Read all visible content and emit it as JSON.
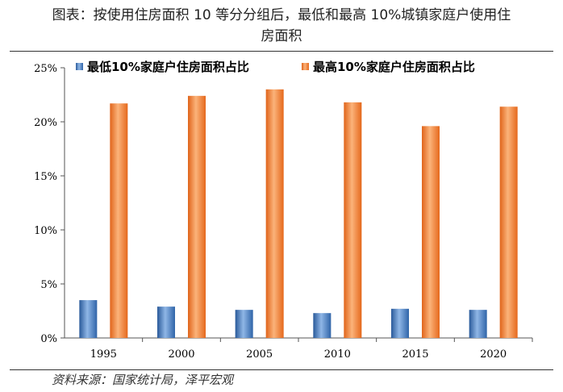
{
  "header": {
    "title_line1": "图表：按使用住房面积 10 等分分组后，最低和最高 10%城镇家庭户使用住",
    "title_line2": "房面积"
  },
  "footer": {
    "source": "资料来源：国家统计局，泽平宏观"
  },
  "colors": {
    "low_series": "#4a7fc1",
    "high_series": "#f07f2c"
  },
  "chart_data": {
    "type": "bar",
    "categories": [
      "1995",
      "2000",
      "2005",
      "2010",
      "2015",
      "2020"
    ],
    "series": [
      {
        "name": "最低10%家庭户住房面积占比",
        "values": [
          3.5,
          2.9,
          2.6,
          2.3,
          2.7,
          2.6
        ]
      },
      {
        "name": "最高10%家庭户住房面积占比",
        "values": [
          21.7,
          22.4,
          23.0,
          21.8,
          19.6,
          21.4
        ]
      }
    ],
    "yticks": [
      "0%",
      "5%",
      "10%",
      "15%",
      "20%",
      "25%"
    ],
    "ylim": [
      0,
      25
    ],
    "legend": "top",
    "grid": false
  }
}
